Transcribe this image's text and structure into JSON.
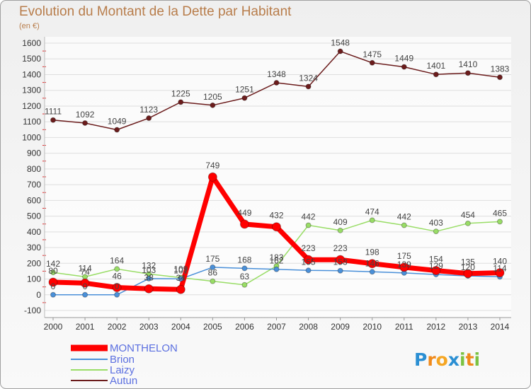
{
  "chart_data": {
    "type": "line",
    "title": "Evolution du Montant de la Dette par Habitant",
    "subtitle": "(en €)",
    "x": [
      "2000",
      "2001",
      "2002",
      "2003",
      "2004",
      "2005",
      "2006",
      "2007",
      "2008",
      "2009",
      "2010",
      "2011",
      "2012",
      "2013",
      "2014"
    ],
    "yticks": [
      -100,
      0,
      100,
      200,
      300,
      400,
      500,
      600,
      700,
      800,
      900,
      1000,
      1100,
      1200,
      1300,
      1400,
      1500,
      1600
    ],
    "ylim": [
      -100,
      1600
    ],
    "grid": true,
    "legend_position": "bottom-left",
    "series": [
      {
        "name": "MONTHELON",
        "color": "#ff0000",
        "values": [
          80,
          74,
          46,
          38,
          34,
          749,
          449,
          432,
          223,
          223,
          198,
          175,
          154,
          135,
          140
        ]
      },
      {
        "name": "Brion",
        "color": "#4a90d9",
        "values": [
          0,
          0,
          0,
          103,
          101,
          175,
          168,
          162,
          155,
          153,
          146,
          139,
          129,
          120,
          114
        ]
      },
      {
        "name": "Laizy",
        "color": "#99dd66",
        "values": [
          142,
          114,
          164,
          132,
          109,
          86,
          63,
          183,
          442,
          409,
          474,
          442,
          403,
          454,
          465
        ]
      },
      {
        "name": "Autun",
        "color": "#6b1c1c",
        "values": [
          1111,
          1092,
          1049,
          1123,
          1225,
          1205,
          1251,
          1348,
          1324,
          1548,
          1475,
          1449,
          1401,
          1410,
          1383
        ]
      }
    ]
  },
  "logo": {
    "text": "Proxiti",
    "colors": [
      "#2b8fd3",
      "#f08a1c",
      "#f5a623",
      "#2b8fd3",
      "#7cc242",
      "#f08a1c",
      "#7cc242"
    ]
  }
}
